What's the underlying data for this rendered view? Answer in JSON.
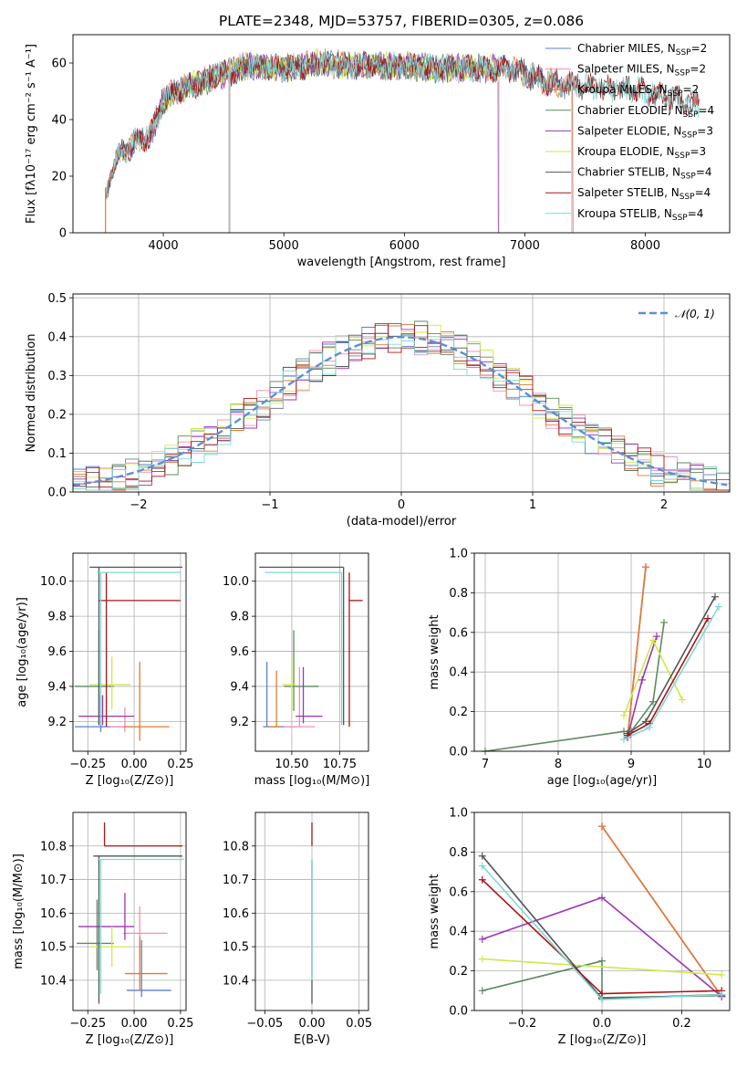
{
  "figure": {
    "title": "PLATE=2348, MJD=53757, FIBERID=0305, z=0.086"
  },
  "colors": {
    "Chabrier MILES": "#5a7fd0",
    "Salpeter MILES": "#f090b8",
    "Kroupa MILES": "#e07b32",
    "Chabrier ELODIE": "#5e8a5e",
    "Salpeter ELODIE": "#9b35b5",
    "Kroupa ELODIE": "#cfe84a",
    "Chabrier STELIB": "#555555",
    "Salpeter STELIB": "#aa1515",
    "Kroupa STELIB": "#7fd8d8",
    "normal": "#5b8fd6",
    "grid": "#b0b0b0"
  },
  "chart_data": [
    {
      "id": "spectrum",
      "type": "line",
      "xlabel": "wavelength [Angstrom, rest frame]",
      "ylabel": "Flux [fλ10⁻¹⁷ erg cm⁻² s⁻¹ A⁻¹]",
      "xlim": [
        3250,
        8700
      ],
      "ylim": [
        0,
        70
      ],
      "xticks": [
        4000,
        5000,
        6000,
        7000,
        8000
      ],
      "yticks": [
        0,
        20,
        40,
        60
      ],
      "grid": false,
      "legend_position": "top-right",
      "legend": [
        {
          "name": "Chabrier MILES",
          "label_main": "Chabrier MILES, N",
          "sub": "SSP",
          "tail": "=2"
        },
        {
          "name": "Salpeter MILES",
          "label_main": "Salpeter MILES, N",
          "sub": "SSP",
          "tail": "=2"
        },
        {
          "name": "Kroupa MILES",
          "label_main": "Kroupa MILES, N",
          "sub": "SSP",
          "tail": "=2"
        },
        {
          "name": "Chabrier ELODIE",
          "label_main": "Chabrier ELODIE, N",
          "sub": "SSP",
          "tail": "=4"
        },
        {
          "name": "Salpeter ELODIE",
          "label_main": "Salpeter ELODIE, N",
          "sub": "SSP",
          "tail": "=3"
        },
        {
          "name": "Kroupa ELODIE",
          "label_main": "Kroupa ELODIE, N",
          "sub": "SSP",
          "tail": "=3"
        },
        {
          "name": "Chabrier STELIB",
          "label_main": "Chabrier STELIB, N",
          "sub": "SSP",
          "tail": "=4"
        },
        {
          "name": "Salpeter STELIB",
          "label_main": "Salpeter STELIB, N",
          "sub": "SSP",
          "tail": "=4"
        },
        {
          "name": "Kroupa STELIB",
          "label_main": "Kroupa STELIB, N",
          "sub": "SSP",
          "tail": "=4"
        }
      ],
      "continuum": {
        "x": [
          3520,
          3650,
          3800,
          3900,
          4000,
          4100,
          4300,
          4500,
          4700,
          5000,
          5300,
          5600,
          6000,
          6300,
          6600,
          6900,
          7200,
          7500,
          7800,
          8100,
          8450
        ],
        "y": [
          20,
          28,
          33,
          35,
          47,
          50,
          53,
          56,
          59,
          58,
          60,
          59,
          59,
          58,
          58,
          58,
          53,
          52,
          51,
          49,
          45
        ]
      }
    },
    {
      "id": "residuals",
      "type": "histogram",
      "xlabel": "(data-model)/error",
      "ylabel": "Normed distribution",
      "xlim": [
        -2.5,
        2.5
      ],
      "ylim": [
        0,
        0.51
      ],
      "xticks": [
        -2,
        -1,
        0,
        1,
        2
      ],
      "yticks": [
        0.0,
        0.1,
        0.2,
        0.3,
        0.4,
        0.5
      ],
      "grid": true,
      "bin_width": 0.1,
      "legend": {
        "label": "𝒩(0, 1)",
        "position": "top-right"
      }
    },
    {
      "id": "age-vs-Z",
      "type": "errorbar",
      "xlabel": "Z [log₁₀(Z/Z⊙)]",
      "ylabel": "age  [log₁₀(age/yr)]",
      "xlim": [
        -0.33,
        0.28
      ],
      "ylim": [
        9.03,
        10.16
      ],
      "xticks": [
        -0.25,
        0.0,
        0.25
      ],
      "yticks": [
        9.2,
        9.4,
        9.6,
        9.8,
        10.0
      ],
      "grid": true,
      "points": [
        {
          "model": "Chabrier MILES",
          "x": -0.18,
          "xerr": [
            0.14,
            0.12
          ],
          "y": 9.17,
          "yerr": [
            0.03,
            0.18
          ]
        },
        {
          "model": "Salpeter MILES",
          "x": -0.05,
          "xerr": [
            0.08,
            0.08
          ],
          "y": 9.17,
          "yerr": [
            0.03,
            0.11
          ]
        },
        {
          "model": "Kroupa MILES",
          "x": 0.03,
          "xerr": [
            0.09,
            0.16
          ],
          "y": 9.17,
          "yerr": [
            0.08,
            0.37
          ]
        },
        {
          "model": "Chabrier ELODIE",
          "x": -0.19,
          "xerr": [
            0.13,
            0.08
          ],
          "y": 9.4,
          "yerr": [
            0.22,
            0.32
          ]
        },
        {
          "model": "Salpeter ELODIE",
          "x": -0.17,
          "xerr": [
            0.13,
            0.17
          ],
          "y": 9.23,
          "yerr": [
            0.05,
            0.12
          ]
        },
        {
          "model": "Kroupa ELODIE",
          "x": -0.12,
          "xerr": [
            0.12,
            0.1
          ],
          "y": 9.41,
          "yerr": [
            0.14,
            0.16
          ]
        },
        {
          "model": "Chabrier STELIB",
          "x": -0.19,
          "xerr": [
            0.05,
            0.45
          ],
          "y": 10.08,
          "yerr": [
            0.9,
            0.0
          ]
        },
        {
          "model": "Salpeter STELIB",
          "x": -0.15,
          "xerr": [
            0.04,
            0.4
          ],
          "y": 9.89,
          "yerr": [
            0.72,
            0.16
          ]
        },
        {
          "model": "Kroupa STELIB",
          "x": -0.18,
          "xerr": [
            0.02,
            0.43
          ],
          "y": 10.05,
          "yerr": [
            0.87,
            0.0
          ]
        }
      ]
    },
    {
      "id": "age-vs-mass",
      "type": "errorbar",
      "xlabel": "mass [log₁₀(M/M⊙)]",
      "xlim": [
        10.31,
        10.9
      ],
      "ylim": [
        9.03,
        10.16
      ],
      "xticks": [
        10.5,
        10.75
      ],
      "yticks": [
        9.2,
        9.4,
        9.6,
        9.8,
        10.0
      ],
      "grid": true,
      "points": [
        {
          "model": "Chabrier MILES",
          "x": 10.37,
          "xerr": [
            0.02,
            0.15
          ],
          "y": 9.17,
          "yerr": [
            0.0,
            0.37
          ]
        },
        {
          "model": "Salpeter MILES",
          "x": 10.54,
          "xerr": [
            0.08,
            0.08
          ],
          "y": 9.17,
          "yerr": [
            0.0,
            0.34
          ]
        },
        {
          "model": "Kroupa MILES",
          "x": 10.42,
          "xerr": [
            0.05,
            0.02
          ],
          "y": 9.17,
          "yerr": [
            0.0,
            0.32
          ]
        },
        {
          "model": "Chabrier ELODIE",
          "x": 10.51,
          "xerr": [
            0.05,
            0.13
          ],
          "y": 9.4,
          "yerr": [
            0.14,
            0.32
          ]
        },
        {
          "model": "Salpeter ELODIE",
          "x": 10.56,
          "xerr": [
            0.04,
            0.1
          ],
          "y": 9.23,
          "yerr": [
            0.04,
            0.28
          ]
        },
        {
          "model": "Kroupa ELODIE",
          "x": 10.5,
          "xerr": [
            0.05,
            0.02
          ],
          "y": 9.41,
          "yerr": [
            0.16,
            0.16
          ]
        },
        {
          "model": "Chabrier STELIB",
          "x": 10.77,
          "xerr": [
            0.44,
            0.0
          ],
          "y": 10.08,
          "yerr": [
            0.9,
            0.0
          ]
        },
        {
          "model": "Salpeter STELIB",
          "x": 10.8,
          "xerr": [
            0.0,
            0.07
          ],
          "y": 9.89,
          "yerr": [
            0.72,
            0.16
          ]
        },
        {
          "model": "Kroupa STELIB",
          "x": 10.76,
          "xerr": [
            0.4,
            0.0
          ],
          "y": 10.05,
          "yerr": [
            0.87,
            0.0
          ]
        }
      ]
    },
    {
      "id": "mass-weight-vs-age",
      "type": "line",
      "xlabel": "age  [log₁₀(age/yr)]",
      "ylabel": "mass weight",
      "xlim": [
        6.85,
        10.35
      ],
      "ylim": [
        0.0,
        1.0
      ],
      "xticks": [
        7,
        8,
        9,
        10
      ],
      "yticks": [
        0.0,
        0.2,
        0.4,
        0.6,
        0.8,
        1.0
      ],
      "grid": true,
      "series": [
        {
          "model": "Chabrier MILES",
          "x": [
            8.95,
            9.2
          ],
          "y": [
            0.07,
            0.93
          ]
        },
        {
          "model": "Salpeter MILES",
          "x": [
            8.95,
            9.2
          ],
          "y": [
            0.07,
            0.93
          ]
        },
        {
          "model": "Kroupa MILES",
          "x": [
            8.95,
            9.2
          ],
          "y": [
            0.07,
            0.93
          ]
        },
        {
          "model": "Chabrier ELODIE",
          "x": [
            7.0,
            8.9,
            9.0,
            9.3,
            9.45
          ],
          "y": [
            0.0,
            0.1,
            0.1,
            0.25,
            0.65
          ]
        },
        {
          "model": "Salpeter ELODIE",
          "x": [
            8.95,
            9.15,
            9.35
          ],
          "y": [
            0.07,
            0.36,
            0.58
          ]
        },
        {
          "model": "Kroupa ELODIE",
          "x": [
            8.9,
            9.3,
            9.7
          ],
          "y": [
            0.18,
            0.56,
            0.26
          ]
        },
        {
          "model": "Chabrier STELIB",
          "x": [
            8.95,
            9.2,
            10.15
          ],
          "y": [
            0.09,
            0.15,
            0.78
          ]
        },
        {
          "model": "Salpeter STELIB",
          "x": [
            8.95,
            9.25,
            10.05
          ],
          "y": [
            0.08,
            0.14,
            0.67
          ]
        },
        {
          "model": "Kroupa STELIB",
          "x": [
            8.9,
            9.25,
            10.2
          ],
          "y": [
            0.06,
            0.12,
            0.73
          ]
        }
      ]
    },
    {
      "id": "mass-vs-Z",
      "type": "errorbar",
      "xlabel": "Z [log₁₀(Z/Z⊙)]",
      "ylabel": "mass [log₁₀(M/M⊙)]",
      "xlim": [
        -0.33,
        0.28
      ],
      "ylim": [
        10.31,
        10.9
      ],
      "xticks": [
        -0.25,
        0.0,
        0.25
      ],
      "yticks": [
        10.4,
        10.5,
        10.6,
        10.7,
        10.8
      ],
      "grid": true,
      "points": [
        {
          "model": "Chabrier MILES",
          "x": 0.04,
          "xerr": [
            0.08,
            0.16
          ],
          "y": 10.37,
          "yerr": [
            0.02,
            0.15
          ]
        },
        {
          "model": "Salpeter MILES",
          "x": 0.03,
          "xerr": [
            0.09,
            0.15
          ],
          "y": 10.54,
          "yerr": [
            0.08,
            0.08
          ]
        },
        {
          "model": "Kroupa MILES",
          "x": 0.03,
          "xerr": [
            0.08,
            0.15
          ],
          "y": 10.42,
          "yerr": [
            0.05,
            0.11
          ]
        },
        {
          "model": "Chabrier ELODIE",
          "x": -0.2,
          "xerr": [
            0.11,
            0.09
          ],
          "y": 10.51,
          "yerr": [
            0.08,
            0.13
          ]
        },
        {
          "model": "Salpeter ELODIE",
          "x": -0.05,
          "xerr": [
            0.25,
            0.05
          ],
          "y": 10.56,
          "yerr": [
            0.04,
            0.1
          ]
        },
        {
          "model": "Kroupa ELODIE",
          "x": -0.12,
          "xerr": [
            0.12,
            0.1
          ],
          "y": 10.5,
          "yerr": [
            0.06,
            0.06
          ]
        },
        {
          "model": "Chabrier STELIB",
          "x": -0.19,
          "xerr": [
            0.03,
            0.45
          ],
          "y": 10.77,
          "yerr": [
            0.44,
            0.0
          ]
        },
        {
          "model": "Salpeter STELIB",
          "x": -0.16,
          "xerr": [
            0.0,
            0.42
          ],
          "y": 10.8,
          "yerr": [
            0.0,
            0.07
          ]
        },
        {
          "model": "Kroupa STELIB",
          "x": -0.18,
          "xerr": [
            0.02,
            0.45
          ],
          "y": 10.76,
          "yerr": [
            0.4,
            0.0
          ]
        }
      ]
    },
    {
      "id": "mass-vs-EBV",
      "type": "errorbar",
      "xlabel": "E(B-V)",
      "xlim": [
        -0.06,
        0.06
      ],
      "ylim": [
        10.31,
        10.9
      ],
      "xticks": [
        -0.05,
        0.0,
        0.05
      ],
      "yticks": [
        10.4,
        10.5,
        10.6,
        10.7,
        10.8
      ],
      "grid": true,
      "points": [
        {
          "model": "Chabrier STELIB",
          "x": 0.0,
          "y": 10.44,
          "yerr": [
            0.11,
            0.32
          ]
        },
        {
          "model": "Salpeter STELIB",
          "x": 0.0,
          "y": 10.8,
          "yerr": [
            0.0,
            0.07
          ]
        },
        {
          "model": "Kroupa STELIB",
          "x": 0.0,
          "y": 10.55,
          "yerr": [
            0.15,
            0.21
          ]
        }
      ]
    },
    {
      "id": "mass-weight-vs-Z",
      "type": "line",
      "xlabel": "Z [log₁₀(Z/Z⊙)]",
      "ylabel": "mass weight",
      "xlim": [
        -0.32,
        0.32
      ],
      "ylim": [
        0.0,
        1.0
      ],
      "xticks": [
        -0.2,
        0.0,
        0.2
      ],
      "yticks": [
        0.0,
        0.2,
        0.4,
        0.6,
        0.8,
        1.0
      ],
      "grid": true,
      "series": [
        {
          "model": "Chabrier MILES",
          "x": [
            0.0,
            0.3
          ],
          "y": [
            0.93,
            0.07
          ]
        },
        {
          "model": "Salpeter MILES",
          "x": [
            0.0,
            0.3
          ],
          "y": [
            0.93,
            0.07
          ]
        },
        {
          "model": "Kroupa MILES",
          "x": [
            0.0,
            0.3
          ],
          "y": [
            0.93,
            0.07
          ]
        },
        {
          "model": "Chabrier ELODIE",
          "x": [
            -0.3,
            0.0,
            0.0,
            0.3
          ],
          "y": [
            0.1,
            0.25,
            0.065,
            0.075
          ]
        },
        {
          "model": "Salpeter ELODIE",
          "x": [
            -0.3,
            0.0,
            0.3
          ],
          "y": [
            0.36,
            0.57,
            0.07
          ]
        },
        {
          "model": "Kroupa ELODIE",
          "x": [
            -0.3,
            0.3
          ],
          "y": [
            0.26,
            0.18
          ]
        },
        {
          "model": "Chabrier STELIB",
          "x": [
            -0.3,
            0.0,
            0.3
          ],
          "y": [
            0.78,
            0.06,
            0.08
          ]
        },
        {
          "model": "Salpeter STELIB",
          "x": [
            -0.3,
            0.0,
            0.3
          ],
          "y": [
            0.66,
            0.085,
            0.1
          ]
        },
        {
          "model": "Kroupa STELIB",
          "x": [
            -0.3,
            0.0,
            0.3
          ],
          "y": [
            0.73,
            0.055,
            0.08
          ]
        }
      ]
    }
  ]
}
